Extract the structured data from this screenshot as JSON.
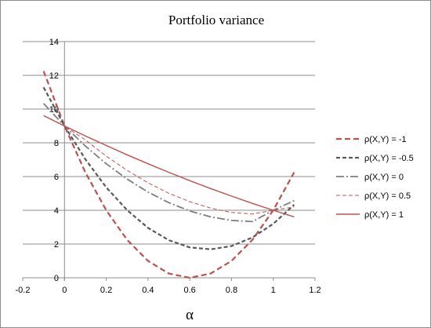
{
  "chart_data": {
    "type": "line",
    "title": "Portfolio variance",
    "xlabel": "α",
    "ylabel": "",
    "xlim": [
      -0.2,
      1.2
    ],
    "ylim": [
      0,
      14
    ],
    "xticks": [
      "-0.2",
      "0",
      "0.2",
      "0.4",
      "0.6",
      "0.8",
      "1",
      "1.2"
    ],
    "yticks": [
      "0",
      "2",
      "4",
      "6",
      "8",
      "10",
      "12",
      "14"
    ],
    "grid": "horizontal",
    "legend": "right",
    "x": [
      -0.1,
      0.0,
      0.1,
      0.2,
      0.3,
      0.4,
      0.5,
      0.6,
      0.7,
      0.8,
      0.9,
      1.0,
      1.1
    ],
    "series": [
      {
        "name": "ρ(X,Y) = -1",
        "color": "#c0504d",
        "dash": "7,4",
        "width": 2.2,
        "values": [
          12.25,
          9.0,
          6.25,
          4.0,
          2.25,
          1.0,
          0.25,
          0.0,
          0.25,
          1.0,
          2.25,
          4.0,
          6.25
        ]
      },
      {
        "name": "ρ(X,Y) = -0.5",
        "color": "#595959",
        "dash": "5,3",
        "width": 2.2,
        "values": [
          11.29,
          9.0,
          7.03,
          5.36,
          4.01,
          2.96,
          2.23,
          1.8,
          1.69,
          1.88,
          2.39,
          3.2,
          4.33
        ]
      },
      {
        "name": "ρ(X,Y) = 0",
        "color": "#7f7f7f",
        "dash": "10,3,2,3",
        "width": 1.8,
        "values": [
          10.33,
          9.0,
          7.81,
          6.76,
          5.85,
          5.08,
          4.45,
          3.96,
          3.61,
          3.4,
          3.33,
          4.0,
          4.57
        ]
      },
      {
        "name": "ρ(X,Y) = 0.5",
        "color": "#c0504d",
        "dash": "5,3",
        "width": 1.0,
        "values": [
          9.61,
          9.0,
          8.17,
          7.21,
          6.37,
          5.63,
          5.01,
          4.51,
          4.13,
          3.87,
          3.78,
          4.0,
          4.2
        ]
      },
      {
        "name": "ρ(X,Y) = 1",
        "color": "#c0504d",
        "dash": "",
        "width": 1.4,
        "values": [
          9.61,
          9.0,
          8.41,
          7.84,
          7.29,
          6.76,
          6.25,
          5.76,
          5.29,
          4.84,
          4.41,
          4.0,
          3.61
        ]
      }
    ]
  }
}
